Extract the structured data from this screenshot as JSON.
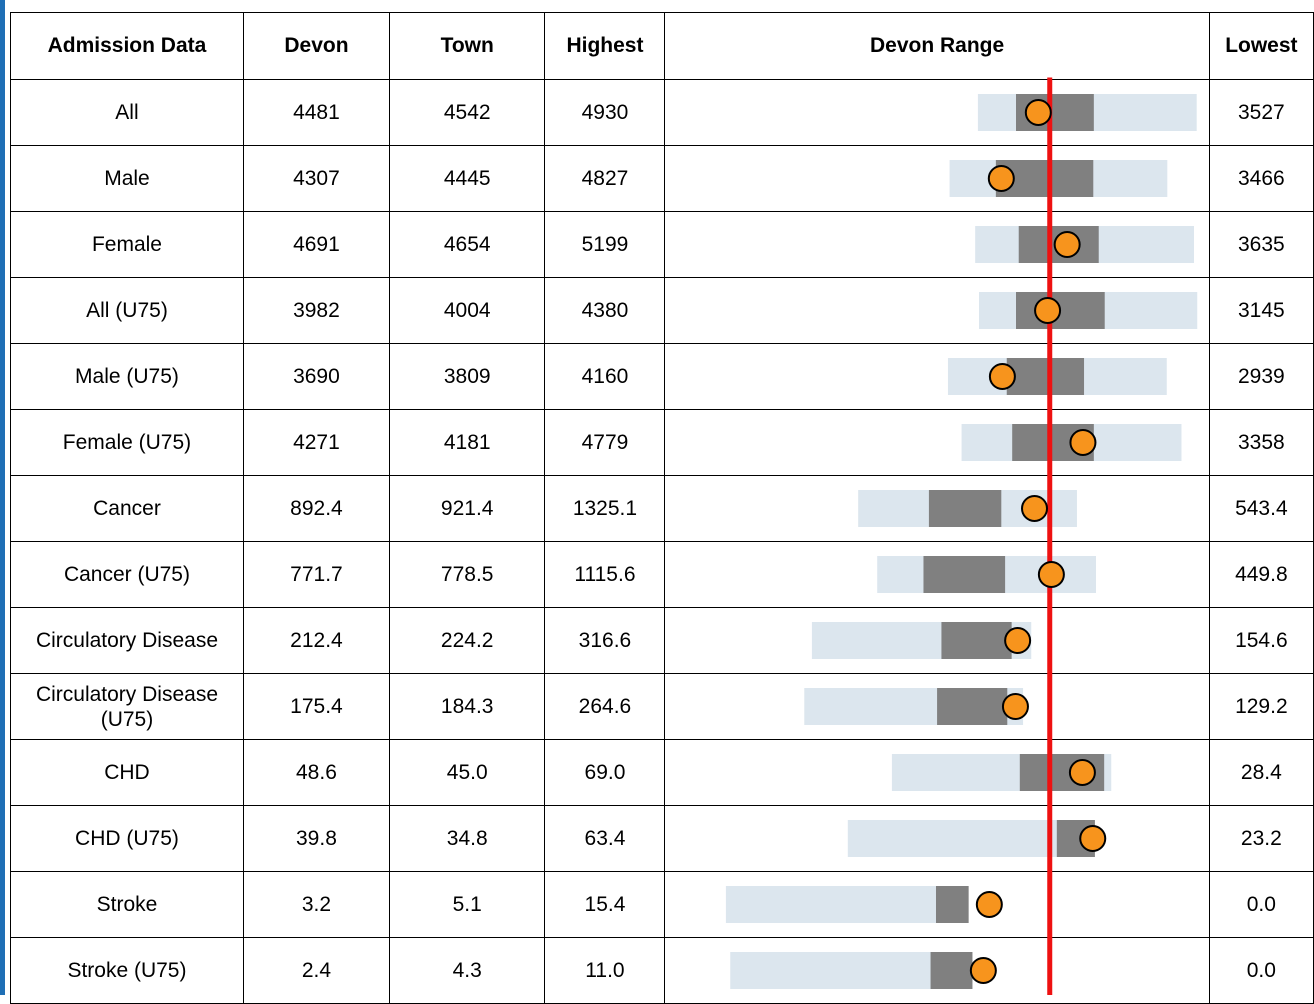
{
  "headers": {
    "admission": "Admission Data",
    "devon": "Devon",
    "town": "Town",
    "highest": "Highest",
    "range": "Devon Range",
    "lowest": "Lowest"
  },
  "rows": [
    {
      "label": "All",
      "devon": "4481",
      "town": "4542",
      "highest": "4930",
      "lowest": "3527"
    },
    {
      "label": "Male",
      "devon": "4307",
      "town": "4445",
      "highest": "4827",
      "lowest": "3466"
    },
    {
      "label": "Female",
      "devon": "4691",
      "town": "4654",
      "highest": "5199",
      "lowest": "3635"
    },
    {
      "label": "All (U75)",
      "devon": "3982",
      "town": "4004",
      "highest": "4380",
      "lowest": "3145"
    },
    {
      "label": "Male (U75)",
      "devon": "3690",
      "town": "3809",
      "highest": "4160",
      "lowest": "2939"
    },
    {
      "label": "Female (U75)",
      "devon": "4271",
      "town": "4181",
      "highest": "4779",
      "lowest": "3358"
    },
    {
      "label": "Cancer",
      "devon": "892.4",
      "town": "921.4",
      "highest": "1325.1",
      "lowest": "543.4"
    },
    {
      "label": "Cancer (U75)",
      "devon": "771.7",
      "town": "778.5",
      "highest": "1115.6",
      "lowest": "449.8"
    },
    {
      "label": "Circulatory Disease",
      "devon": "212.4",
      "town": "224.2",
      "highest": "316.6",
      "lowest": "154.6"
    },
    {
      "label": "Circulatory Disease (U75)",
      "devon": "175.4",
      "town": "184.3",
      "highest": "264.6",
      "lowest": "129.2"
    },
    {
      "label": "CHD",
      "devon": "48.6",
      "town": "45.0",
      "highest": "69.0",
      "lowest": "28.4"
    },
    {
      "label": "CHD (U75)",
      "devon": "39.8",
      "town": "34.8",
      "highest": "63.4",
      "lowest": "23.2"
    },
    {
      "label": "Stroke",
      "devon": "3.2",
      "town": "5.1",
      "highest": "15.4",
      "lowest": "0.0"
    },
    {
      "label": "Stroke (U75)",
      "devon": "2.4",
      "town": "4.3",
      "highest": "11.0",
      "lowest": "0.0"
    }
  ],
  "colors": {
    "full_range": "#dce6ee",
    "inner_range": "#808080",
    "town_marker": "#f7941d",
    "devon_line": "#ee1111"
  },
  "chart_data": {
    "type": "range",
    "categories": [
      "All",
      "Male",
      "Female",
      "All (U75)",
      "Male (U75)",
      "Female (U75)",
      "Cancer",
      "Cancer (U75)",
      "Circulatory Disease",
      "Circulatory Disease (U75)",
      "CHD",
      "CHD (U75)",
      "Stroke",
      "Stroke (U75)"
    ],
    "devon": [
      4481,
      4307,
      4691,
      3982,
      3690,
      4271,
      892.4,
      771.7,
      212.4,
      175.4,
      48.6,
      39.8,
      3.2,
      2.4
    ],
    "town": [
      4542,
      4445,
      4654,
      4004,
      3809,
      4181,
      921.4,
      778.5,
      224.2,
      184.3,
      45.0,
      34.8,
      5.1,
      4.3
    ],
    "highest": [
      4930,
      4827,
      5199,
      4380,
      4160,
      4779,
      1325.1,
      1115.6,
      316.6,
      264.6,
      69.0,
      63.4,
      15.4,
      11.0
    ],
    "lowest": [
      3527,
      3466,
      3635,
      3145,
      2939,
      3358,
      543.4,
      449.8,
      154.6,
      129.2,
      28.4,
      23.2,
      0.0,
      0.0
    ],
    "full_range_start_frac": [
      0.575,
      0.523,
      0.57,
      0.577,
      0.52,
      0.545,
      0.355,
      0.39,
      0.27,
      0.256,
      0.417,
      0.336,
      0.112,
      0.12
    ],
    "full_range_end_frac": [
      0.977,
      0.923,
      0.972,
      0.978,
      0.922,
      0.949,
      0.757,
      0.792,
      0.673,
      0.658,
      0.82,
      0.739,
      0.516,
      0.524
    ],
    "inner_range_start_frac": [
      0.645,
      0.608,
      0.65,
      0.645,
      0.628,
      0.638,
      0.485,
      0.475,
      0.508,
      0.5,
      0.652,
      0.72,
      0.498,
      0.488
    ],
    "inner_range_end_frac": [
      0.788,
      0.787,
      0.797,
      0.808,
      0.77,
      0.788,
      0.618,
      0.625,
      0.637,
      0.629,
      0.807,
      0.79,
      0.558,
      0.565
    ],
    "town_marker_frac": [
      0.686,
      0.618,
      0.739,
      0.703,
      0.62,
      0.768,
      0.679,
      0.71,
      0.648,
      0.644,
      0.767,
      0.786,
      0.596,
      0.585
    ],
    "devon_reference_frac": 0.707
  }
}
